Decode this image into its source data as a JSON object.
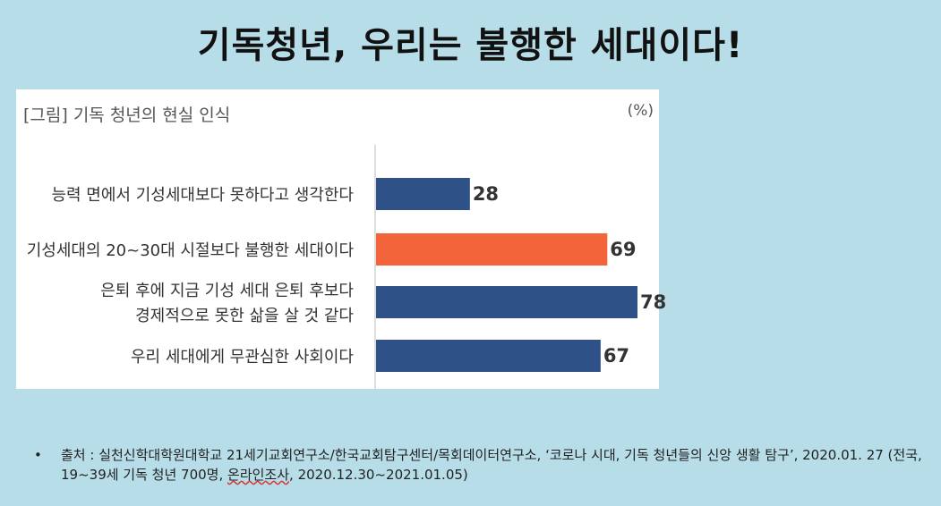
{
  "title": "기독청년, 우리는 불행한 세대이다!",
  "figure": {
    "caption": "[그림] 기독 청년의 현실 인식",
    "unit": "(%)"
  },
  "chart_data": {
    "type": "bar",
    "orientation": "horizontal",
    "categories": [
      [
        "능력 면에서 기성세대보다 못하다고 생각한다"
      ],
      [
        "기성세대의 20~30대 시절보다 불행한 세대이다"
      ],
      [
        "은퇴 후에 지금 기성 세대 은퇴 후보다",
        "경제적으로 못한 삶을 살  것 같다"
      ],
      [
        "우리 세대에게 무관심한 사회이다"
      ]
    ],
    "values": [
      28,
      69,
      78,
      67
    ],
    "colors": [
      "#2e5288",
      "#f4643a",
      "#2e5288",
      "#2e5288"
    ],
    "data_labels": [
      "28",
      "69",
      "78",
      "67"
    ],
    "xlim": [
      0,
      78
    ]
  },
  "source": {
    "bullet": "•",
    "prefix": "출처 : 실천신학대학원대학교 21세기교회연구소/한국교회탐구센터/목회데이터연구소, ‘코로나 시대, 기독 청년들의 신앙 생활 탐구’, 2020.01. 27 (전국, 19~39세 기독 청년 700명, ",
    "underlined": "온라인조사",
    "suffix": ", 2020.12.30~2021.01.05)"
  }
}
